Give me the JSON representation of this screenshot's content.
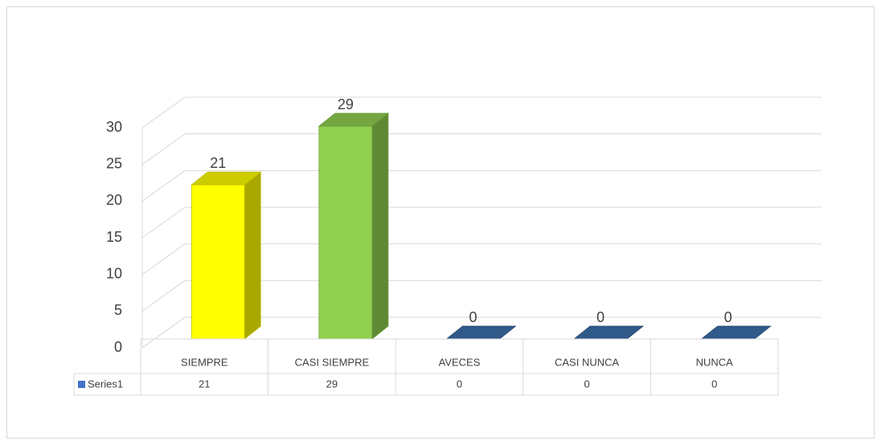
{
  "chart_data": {
    "type": "bar3d",
    "categories": [
      "SIEMPRE",
      "CASI SIEMPRE",
      "AVECES",
      "CASI NUNCA",
      "NUNCA"
    ],
    "series": [
      {
        "name": "Series1",
        "color": "#4472c4",
        "values": [
          21,
          29,
          0,
          0,
          0
        ]
      }
    ],
    "colors": [
      "#ffff00",
      "#92d050",
      "#2f5a8a",
      "#2f5a8a",
      "#2f5a8a"
    ],
    "ylim": [
      0,
      30
    ],
    "yticks": [
      0,
      5,
      10,
      15,
      20,
      25,
      30
    ],
    "grid": true,
    "data_table": true
  }
}
